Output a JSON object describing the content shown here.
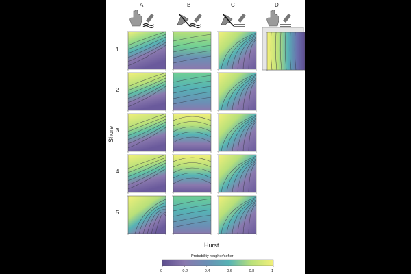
{
  "columns": [
    {
      "label": "A",
      "icon": "finger-on-wavy-surface-icon"
    },
    {
      "label": "B",
      "icon": "pen-on-wavy-surface-icon"
    },
    {
      "label": "C",
      "icon": "pen-on-flat-surface-icon"
    },
    {
      "label": "D",
      "icon": "finger-on-flat-surface-icon"
    }
  ],
  "rows": [
    "1",
    "2",
    "3",
    "4",
    "5"
  ],
  "y_axis_label": "Shore",
  "x_axis_label": "Hurst",
  "colorbar": {
    "title": "Probability rougher/softer",
    "ticks": [
      "0",
      "0.2",
      "0.4",
      "0.6",
      "0.8",
      "1"
    ],
    "colors": [
      "#5d4e8f",
      "#6f5a9c",
      "#8a79ae",
      "#6b8fb5",
      "#56b3b5",
      "#6fcf94",
      "#b8e07a",
      "#f2f07a"
    ]
  },
  "panel_types": [
    [
      "wedge-low",
      "flat-high",
      "corner",
      null
    ],
    [
      "wedge-mid",
      "flat-mid",
      "corner",
      null
    ],
    [
      "wedge-mid",
      "dome",
      "corner",
      null
    ],
    [
      "wedge-mid",
      "dome",
      "corner",
      null
    ],
    [
      "corner-left",
      "flat-mid",
      "corner",
      null
    ]
  ],
  "d_panel_type": "vertical-bands"
}
